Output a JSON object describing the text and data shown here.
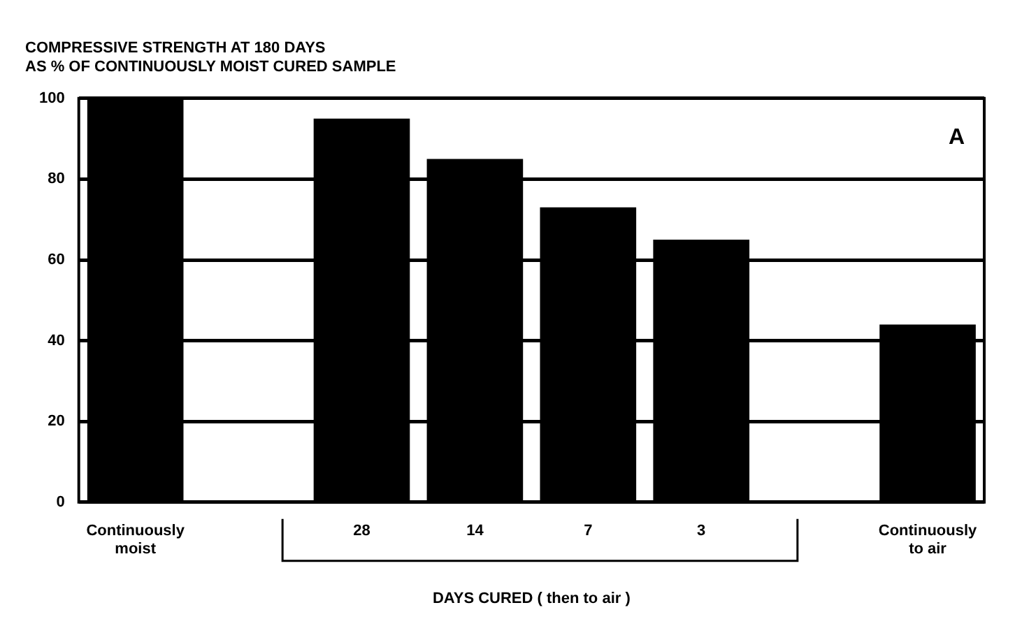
{
  "chart_data": {
    "type": "bar",
    "title": [
      "COMPRESSIVE STRENGTH AT 180 DAYS",
      "AS % OF CONTINUOUSLY MOIST CURED SAMPLE"
    ],
    "categories": [
      "Continuously moist",
      null,
      "28",
      "14",
      "7",
      "3",
      null,
      "Continuously to air"
    ],
    "values": [
      100,
      null,
      95,
      85,
      73,
      65,
      null,
      44
    ],
    "color": "#000000",
    "xlabel": "DAYS CURED ( then to air )",
    "ylim": [
      0,
      100
    ],
    "yticks": [
      0,
      20,
      40,
      60,
      80,
      100
    ],
    "grid": "y",
    "legend": false,
    "annotations": [
      "A"
    ]
  }
}
